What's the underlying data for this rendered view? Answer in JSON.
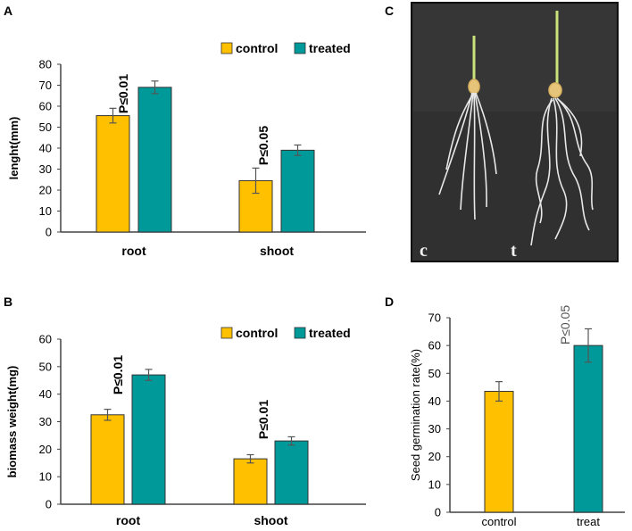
{
  "colors": {
    "control": "#FFC000",
    "treated": "#009999",
    "axis": "#444444",
    "error": "#555555"
  },
  "chart_data": [
    {
      "panel": "A",
      "type": "bar",
      "ylabel": "lenght(mm)",
      "ylim": [
        0,
        80
      ],
      "yticks": [
        0,
        10,
        20,
        30,
        40,
        50,
        60,
        70,
        80
      ],
      "categories": [
        "root",
        "shoot"
      ],
      "series": [
        {
          "name": "control",
          "values": [
            55.5,
            24.5
          ],
          "errors": [
            3.5,
            6.0
          ]
        },
        {
          "name": "treated",
          "values": [
            69,
            39
          ],
          "errors": [
            3.0,
            2.5
          ]
        }
      ],
      "annotations": [
        "P≤0.01",
        "P≤0.05"
      ],
      "legend": [
        "control",
        "treated"
      ]
    },
    {
      "panel": "B",
      "type": "bar",
      "ylabel": "biomass weight(mg)",
      "ylim": [
        0,
        60
      ],
      "yticks": [
        0,
        10,
        20,
        30,
        40,
        50,
        60
      ],
      "categories": [
        "root",
        "shoot"
      ],
      "series": [
        {
          "name": "control",
          "values": [
            32.5,
            16.5
          ],
          "errors": [
            2.0,
            1.5
          ]
        },
        {
          "name": "treated",
          "values": [
            47,
            23
          ],
          "errors": [
            2.0,
            1.5
          ]
        }
      ],
      "annotations": [
        "P≤0.01",
        "P≤0.01"
      ],
      "legend": [
        "control",
        "treated"
      ]
    },
    {
      "panel": "D",
      "type": "bar",
      "ylabel": "Seed germination rate(%)",
      "ylim": [
        0,
        70
      ],
      "yticks": [
        0,
        10,
        20,
        30,
        40,
        50,
        60,
        70
      ],
      "categories": [
        "control",
        "treat"
      ],
      "values": [
        43.5,
        60
      ],
      "errors": [
        3.5,
        6.0
      ],
      "annotations": [
        "P≤0.05"
      ]
    }
  ],
  "photo": {
    "panel": "C",
    "labels": [
      "c",
      "t"
    ]
  }
}
